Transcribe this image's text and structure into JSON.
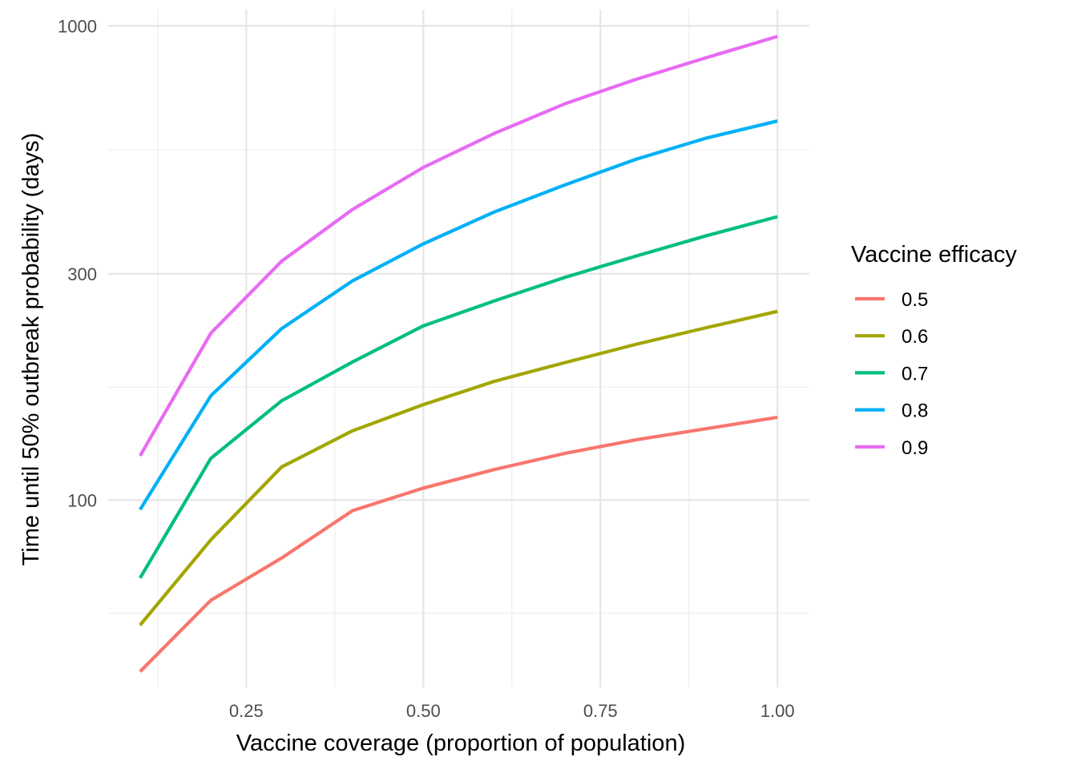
{
  "chart_data": {
    "type": "line",
    "title": "",
    "xlabel": "Vaccine coverage (proportion of population)",
    "ylabel": "Time until 50% outbreak probability (days)",
    "x": [
      0.1,
      0.2,
      0.3,
      0.4,
      0.5,
      0.6,
      0.7,
      0.8,
      0.9,
      1.0
    ],
    "x_ticks": [
      "0.25",
      "0.50",
      "0.75",
      "1.00"
    ],
    "x_tick_values": [
      0.25,
      0.5,
      0.75,
      1.0
    ],
    "xlim": [
      0.055,
      1.045
    ],
    "y_scale": "log10",
    "y_ticks": [
      "100",
      "300",
      "1000"
    ],
    "y_tick_values": [
      100,
      300,
      1000
    ],
    "ylim": [
      40.3,
      1082
    ],
    "grid": true,
    "legend": {
      "title": "Vaccine efficacy",
      "position": "right"
    },
    "series": [
      {
        "name": "0.5",
        "color": "#F8766D",
        "values": [
          43.5,
          61.5,
          75.5,
          95,
          106,
          116,
          125.5,
          134,
          141.5,
          149.5
        ]
      },
      {
        "name": "0.6",
        "color": "#A3A500",
        "values": [
          54.5,
          82.5,
          117.5,
          140,
          159,
          178,
          195,
          213,
          231,
          250
        ]
      },
      {
        "name": "0.7",
        "color": "#00BF7D",
        "values": [
          68.5,
          122.5,
          162,
          195.5,
          233,
          263,
          295,
          327,
          361,
          396
        ]
      },
      {
        "name": "0.8",
        "color": "#00B0F6",
        "values": [
          95.5,
          166,
          230,
          290,
          347,
          405,
          462,
          523,
          580,
          630
        ]
      },
      {
        "name": "0.9",
        "color": "#E76BF3",
        "values": [
          124,
          225,
          319,
          410,
          503,
          593,
          685,
          771,
          857,
          950
        ]
      }
    ]
  }
}
